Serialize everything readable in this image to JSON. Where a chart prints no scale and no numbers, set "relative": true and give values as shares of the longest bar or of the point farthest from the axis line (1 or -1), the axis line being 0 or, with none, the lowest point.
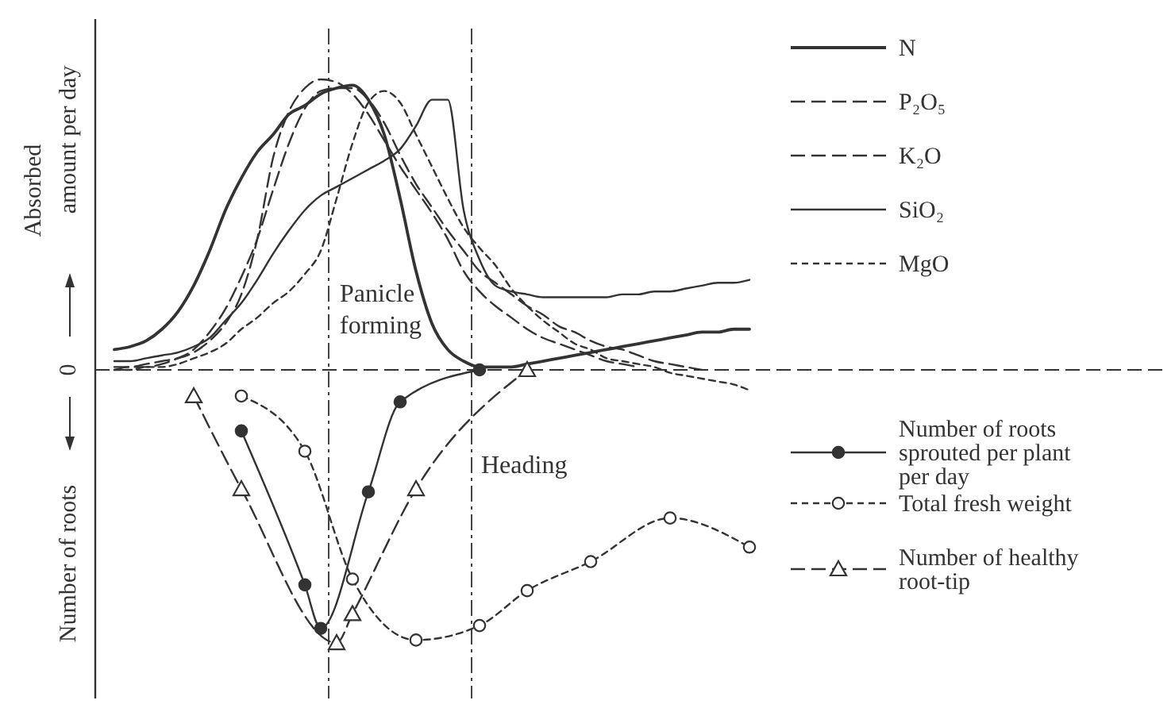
{
  "chart_data": {
    "type": "line",
    "relative": true,
    "ylabel": "Absorbed amount per day",
    "annotations": [
      "Panicle forming",
      "Heading",
      "Number of roots",
      "0"
    ],
    "categories": [
      null,
      null,
      null,
      null,
      null,
      null,
      null,
      null,
      null,
      null,
      null,
      null,
      null,
      null,
      null,
      null,
      null,
      null,
      null,
      null,
      null,
      null,
      null,
      null,
      null,
      null,
      null,
      null,
      null,
      null,
      null,
      null,
      null,
      null,
      null,
      null,
      null,
      null,
      null,
      null,
      null
    ],
    "legend": "right",
    "ref_lines": [
      {
        "axis": "y",
        "value": 0,
        "line_style": "dashed",
        "color": "#333333"
      }
    ],
    "series": [
      {
        "name": "N",
        "color": "#333333",
        "line_style": "solid",
        "values": [
          0.07,
          0.08,
          0.1,
          0.14,
          0.2,
          0.29,
          0.41,
          0.55,
          0.66,
          0.75,
          0.81,
          0.88,
          0.91,
          0.95,
          0.97,
          0.98,
          0.93,
          0.81,
          0.59,
          0.34,
          0.16,
          0.07,
          0.03,
          0.01,
          0.01,
          0.01,
          0.02,
          0.03,
          0.04,
          0.05,
          0.06,
          0.07,
          0.08,
          0.09,
          0.1,
          0.11,
          0.12,
          0.13,
          0.13,
          0.14,
          0.14
        ]
      },
      {
        "name": "P₂O₅",
        "color": "#333333",
        "line_style": "dashed",
        "values": [
          0.0,
          0.01,
          0.01,
          0.02,
          0.04,
          0.07,
          0.13,
          0.21,
          0.32,
          0.45,
          0.62,
          0.78,
          0.9,
          0.96,
          0.97,
          0.97,
          0.93,
          0.85,
          0.74,
          0.64,
          0.56,
          0.48,
          0.41,
          0.34,
          0.3,
          0.26,
          0.22,
          0.19,
          0.15,
          0.13,
          0.1,
          0.08,
          0.07,
          0.05,
          0.03,
          0.02,
          0.01,
          0.0,
          null,
          null,
          null
        ]
      },
      {
        "name": "K₂O",
        "color": "#333333",
        "line_style": "dashed",
        "values": [
          0.01,
          0.01,
          0.02,
          0.03,
          0.04,
          0.06,
          0.1,
          0.16,
          0.26,
          0.45,
          0.73,
          0.89,
          0.97,
          1.0,
          0.99,
          0.95,
          0.88,
          0.79,
          0.7,
          0.62,
          0.54,
          0.45,
          0.34,
          0.27,
          0.22,
          0.18,
          0.14,
          0.11,
          0.09,
          0.07,
          0.05,
          0.03,
          0.02,
          0.01,
          null,
          null,
          null,
          null,
          null,
          null,
          null
        ]
      },
      {
        "name": "SiO₂",
        "color": "#333333",
        "line_style": "solid",
        "values": [
          0.03,
          0.03,
          0.04,
          0.05,
          0.06,
          0.08,
          0.11,
          0.17,
          0.23,
          0.31,
          0.4,
          0.48,
          0.55,
          0.6,
          0.63,
          0.66,
          0.69,
          0.72,
          0.76,
          0.84,
          0.93,
          0.93,
          0.55,
          0.38,
          0.29,
          0.27,
          0.26,
          0.25,
          0.25,
          0.25,
          0.25,
          0.25,
          0.26,
          0.26,
          0.27,
          0.27,
          0.28,
          0.29,
          0.3,
          0.3,
          0.31
        ]
      },
      {
        "name": "MgO",
        "color": "#333333",
        "line_style": "dotted",
        "values": [
          0.0,
          0.0,
          0.01,
          0.01,
          0.02,
          0.04,
          0.06,
          0.09,
          0.14,
          0.18,
          0.23,
          0.27,
          0.33,
          0.41,
          0.59,
          0.78,
          0.92,
          0.96,
          0.92,
          0.81,
          0.7,
          0.59,
          0.49,
          0.42,
          0.36,
          0.28,
          0.22,
          0.17,
          0.13,
          0.09,
          0.07,
          0.04,
          0.03,
          0.02,
          0.01,
          -0.01,
          -0.02,
          -0.03,
          -0.04,
          -0.05,
          -0.07
        ]
      },
      {
        "name": "Number of roots sprouted per plant per day",
        "color": "#333333",
        "line_style": "solid",
        "marker": "circle",
        "values": [
          null,
          null,
          null,
          null,
          null,
          null,
          null,
          null,
          -0.21,
          null,
          null,
          null,
          -0.74,
          -0.89,
          null,
          null,
          -0.42,
          null,
          -0.11,
          null,
          null,
          null,
          null,
          0.0,
          null,
          null,
          null,
          null,
          null,
          null,
          null,
          null,
          null,
          null,
          null,
          null,
          null,
          null,
          null,
          null,
          null
        ]
      },
      {
        "name": "Total fresh weight",
        "color": "#333333",
        "line_style": "dotted",
        "marker": "circle",
        "values": [
          null,
          null,
          null,
          null,
          null,
          null,
          null,
          null,
          -0.09,
          null,
          null,
          null,
          -0.28,
          null,
          null,
          -0.72,
          null,
          null,
          null,
          -0.93,
          null,
          null,
          null,
          -0.88,
          null,
          null,
          -0.76,
          null,
          null,
          null,
          -0.66,
          null,
          null,
          null,
          null,
          -0.51,
          null,
          null,
          null,
          null,
          -0.61
        ]
      },
      {
        "name": "Number of healthy root-tip",
        "color": "#333333",
        "line_style": "dashed",
        "marker": "triangle",
        "values": [
          null,
          null,
          null,
          null,
          null,
          -0.09,
          null,
          null,
          -0.41,
          null,
          null,
          null,
          null,
          null,
          -0.94,
          -0.84,
          null,
          null,
          null,
          -0.41,
          null,
          null,
          null,
          null,
          null,
          null,
          0.0,
          null,
          null,
          null,
          null,
          null,
          null,
          null,
          null,
          null,
          null,
          null,
          null,
          null,
          null
        ]
      }
    ]
  }
}
